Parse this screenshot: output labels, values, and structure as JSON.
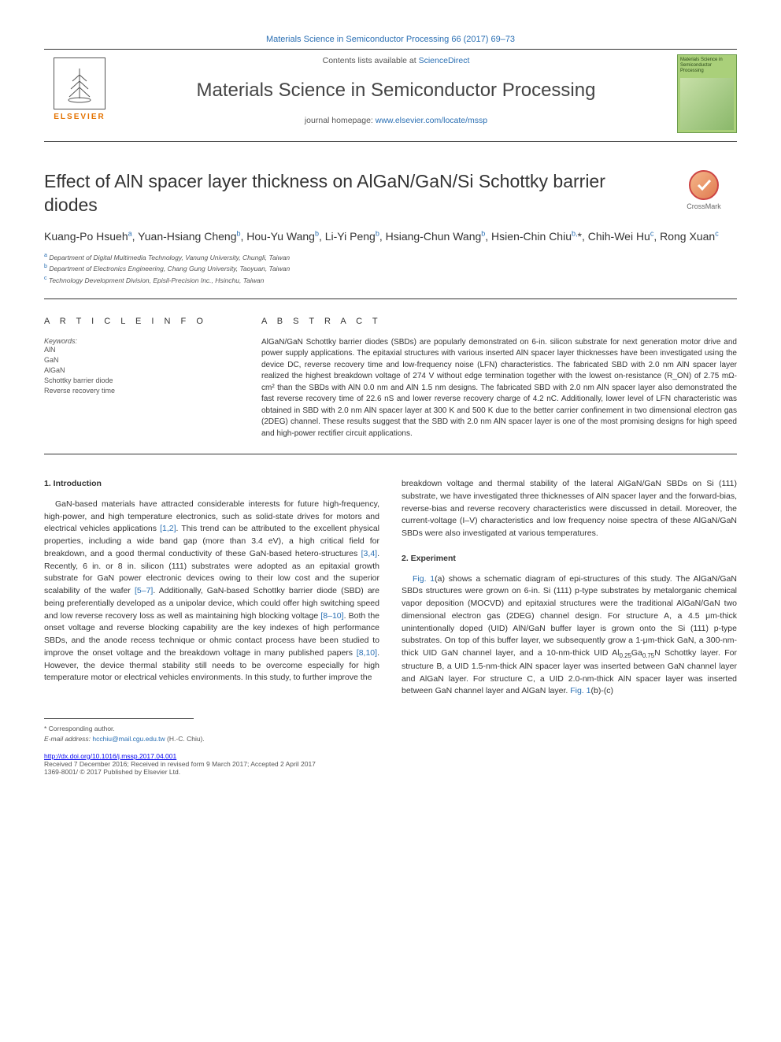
{
  "header": {
    "top_link": "Materials Science in Semiconductor Processing 66 (2017) 69–73",
    "contents_text": "Contents lists available at ",
    "contents_link": "ScienceDirect",
    "journal_name": "Materials Science in Semiconductor Processing",
    "homepage_text": "journal homepage: ",
    "homepage_link": "www.elsevier.com/locate/mssp",
    "publisher_label": "ELSEVIER",
    "cover_title": "Materials Science in Semiconductor Processing"
  },
  "crossmark": {
    "label": "CrossMark"
  },
  "title": "Effect of AlN spacer layer thickness on AlGaN/GaN/Si Schottky barrier diodes",
  "authors_html": "Kuang-Po Hsueh<sup>a</sup>, Yuan-Hsiang Cheng<sup>b</sup>, Hou-Yu Wang<sup>b</sup>, Li-Yi Peng<sup>b</sup>, Hsiang-Chun Wang<sup>b</sup>, Hsien-Chin Chiu<sup>b,</sup>*, Chih-Wei Hu<sup>c</sup>, Rong Xuan<sup>c</sup>",
  "affiliations": {
    "a": "Department of Digital Multimedia Technology, Vanung University, Chungli, Taiwan",
    "b": "Department of Electronics Engineering, Chang Gung University, Taoyuan, Taiwan",
    "c": "Technology Development Division, Episil-Precision Inc., Hsinchu, Taiwan"
  },
  "info_label": "A R T I C L E  I N F O",
  "keywords_label": "Keywords:",
  "keywords": [
    "AlN",
    "GaN",
    "AlGaN",
    "Schottky barrier diode",
    "Reverse recovery time"
  ],
  "abstract_label": "A B S T R A C T",
  "abstract_text": "AlGaN/GaN Schottky barrier diodes (SBDs) are popularly demonstrated on 6-in. silicon substrate for next generation motor drive and power supply applications. The epitaxial structures with various inserted AlN spacer layer thicknesses have been investigated using the device DC, reverse recovery time and low-frequency noise (LFN) characteristics. The fabricated SBD with 2.0 nm AlN spacer layer realized the highest breakdown voltage of 274 V without edge termination together with the lowest on-resistance (R_ON) of 2.75 mΩ-cm² than the SBDs with AlN 0.0 nm and AlN 1.5 nm designs. The fabricated SBD with 2.0 nm AlN spacer layer also demonstrated the fast reverse recovery time of 22.6 nS and lower reverse recovery charge of 4.2 nC. Additionally, lower level of LFN characteristic was obtained in SBD with 2.0 nm AlN spacer layer at 300 K and 500 K due to the better carrier confinement in two dimensional electron gas (2DEG) channel. These results suggest that the SBD with 2.0 nm AlN spacer layer is one of the most promising designs for high speed and high-power rectifier circuit applications.",
  "sections": {
    "s1": {
      "heading": "1. Introduction",
      "p1a": "GaN-based materials have attracted considerable interests for future high-frequency, high-power, and high temperature electronics, such as solid-state drives for motors and electrical vehicles applications ",
      "p1_ref1": "[1,2]",
      "p1b": ". This trend can be attributed to the excellent physical properties, including a wide band gap (more than 3.4 eV), a high critical field for breakdown, and a good thermal conductivity of these GaN-based hetero-structures ",
      "p1_ref2": "[3,4]",
      "p1c": ". Recently, 6 in. or 8 in. silicon (111) substrates were adopted as an epitaxial growth substrate for GaN power electronic devices owing to their low cost and the superior scalability of the wafer ",
      "p1_ref3": "[5–7]",
      "p1d": ". Additionally, GaN-based Schottky barrier diode (SBD) are being preferentially developed as a unipolar device, which could offer high switching speed and low reverse recovery loss as well as maintaining high blocking voltage ",
      "p1_ref4": "[8–10]",
      "p1e": ". Both the onset voltage and reverse blocking capability are the key indexes of high performance SBDs, and the anode recess technique or ohmic contact process have been studied to improve the onset voltage and the breakdown voltage in many published papers ",
      "p1_ref5": "[8,10]",
      "p1f": ". However, the device thermal stability still needs to be overcome especially for high temperature motor or electrical vehicles environments. In this study, to further improve the ",
      "p1_rcol": "breakdown voltage and thermal stability of the lateral AlGaN/GaN SBDs on Si (111) substrate, we have investigated three thicknesses of AlN spacer layer and the forward-bias, reverse-bias and reverse recovery characteristics were discussed in detail. Moreover, the current-voltage (I–V) characteristics and low frequency noise spectra of these AlGaN/GaN SBDs were also investigated at various temperatures."
    },
    "s2": {
      "heading": "2. Experiment",
      "p1_ref1": "Fig. 1",
      "p1a": "(a) shows a schematic diagram of epi-structures of this study. The AlGaN/GaN SBDs structures were grown on 6-in. Si (111) p-type substrates by metalorganic chemical vapor deposition (MOCVD) and epitaxial structures were the traditional AlGaN/GaN two dimensional electron gas (2DEG) channel design. For structure A, a 4.5 μm-thick unintentionally doped (UID) AlN/GaN buffer layer is grown onto the Si (111) p-type substrates. On top of this buffer layer, we subsequently grow a 1-μm-thick GaN, a 300-nm-thick UID GaN channel layer, and a 10-nm-thick UID Al",
      "p1b": "Ga",
      "p1c": "N Schottky layer. For structure B, a UID 1.5-nm-thick AlN spacer layer was inserted between GaN channel layer and AlGaN layer. For structure C, a UID 2.0-nm-thick AlN spacer layer was inserted between GaN channel layer and AlGaN layer. ",
      "p1_ref2": "Fig. 1",
      "p1d": "(b)-(c)",
      "sub1": "0.25",
      "sub2": "0.75"
    }
  },
  "footer": {
    "corr": "* Corresponding author.",
    "email_label": "E-mail address: ",
    "email": "hcchiu@mail.cgu.edu.tw",
    "email_tail": " (H.-C. Chiu).",
    "doi": "http://dx.doi.org/10.1016/j.mssp.2017.04.001",
    "dates": "Received 7 December 2016; Received in revised form 9 March 2017; Accepted 2 April 2017",
    "copyright": "1369-8001/ © 2017 Published by Elsevier Ltd."
  },
  "colors": {
    "link": "#2a6fb3",
    "text": "#333333",
    "muted": "#555555",
    "orange": "#e47200",
    "cover_bg": "#aad07a",
    "cover_border": "#6a9a4a"
  }
}
